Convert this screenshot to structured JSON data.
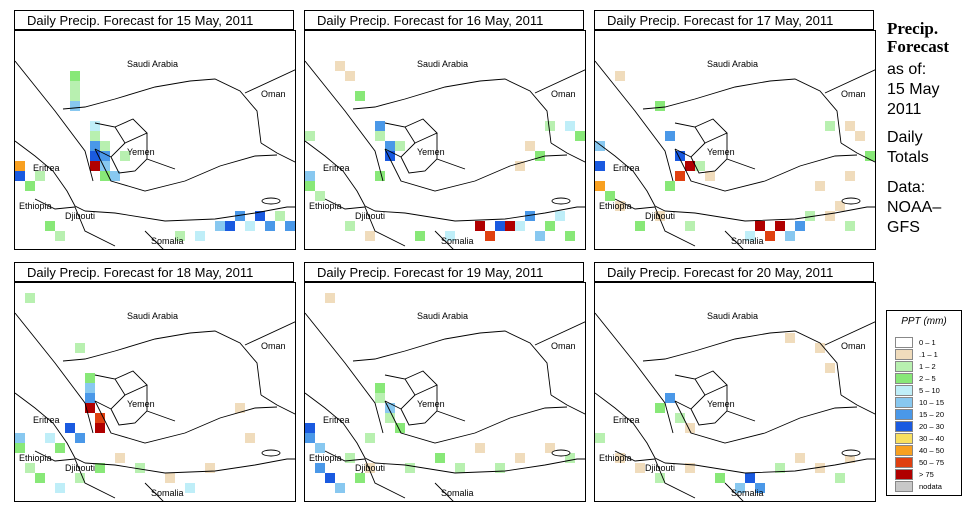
{
  "panels": [
    {
      "title": "Daily Precip. Forecast for  15 May, 2011"
    },
    {
      "title": "Daily Precip. Forecast for  16 May, 2011"
    },
    {
      "title": "Daily Precip. Forecast for  17 May, 2011"
    },
    {
      "title": "Daily Precip. Forecast for  18 May, 2011"
    },
    {
      "title": "Daily Precip. Forecast for  19 May, 2011"
    },
    {
      "title": "Daily Precip. Forecast for  20 May, 2011"
    }
  ],
  "map_labels": {
    "saudi_arabia": "Saudi Arabia",
    "oman": "Oman",
    "yemen": "Yemen",
    "eritrea": "Eritrea",
    "ethiopia": "Ethiopia",
    "djibouti": "Djibouti",
    "somalia": "Somalia"
  },
  "sidebar": {
    "heading_line1": "Precip.",
    "heading_line2": "Forecast",
    "asof_label": "as of:",
    "date_line1": "15 May",
    "date_line2": "2011",
    "totals_line1": "Daily",
    "totals_line2": "Totals",
    "data_label": "Data:",
    "source_line1": "NOAA–",
    "source_line2": "GFS"
  },
  "legend": {
    "title": "PPT (mm)",
    "classes": [
      {
        "label": "0 – 1",
        "color": "#ffffff"
      },
      {
        "label": ".1 – 1",
        "color": "#f0dcbc"
      },
      {
        "label": "1 – 2",
        "color": "#b8f0b0"
      },
      {
        "label": "2 – 5",
        "color": "#88e878"
      },
      {
        "label": "5 – 10",
        "color": "#bfeef8"
      },
      {
        "label": "10 – 15",
        "color": "#88c8f0"
      },
      {
        "label": "15 – 20",
        "color": "#4a98e8"
      },
      {
        "label": "20 – 30",
        "color": "#1a5ae0"
      },
      {
        "label": "30 – 40",
        "color": "#f8e060"
      },
      {
        "label": "40 – 50",
        "color": "#f8a020"
      },
      {
        "label": "50 – 75",
        "color": "#e04010"
      },
      {
        "label": "> 75",
        "color": "#b00000"
      },
      {
        "label": "nodata",
        "color": "#c8c8c8"
      }
    ]
  }
}
